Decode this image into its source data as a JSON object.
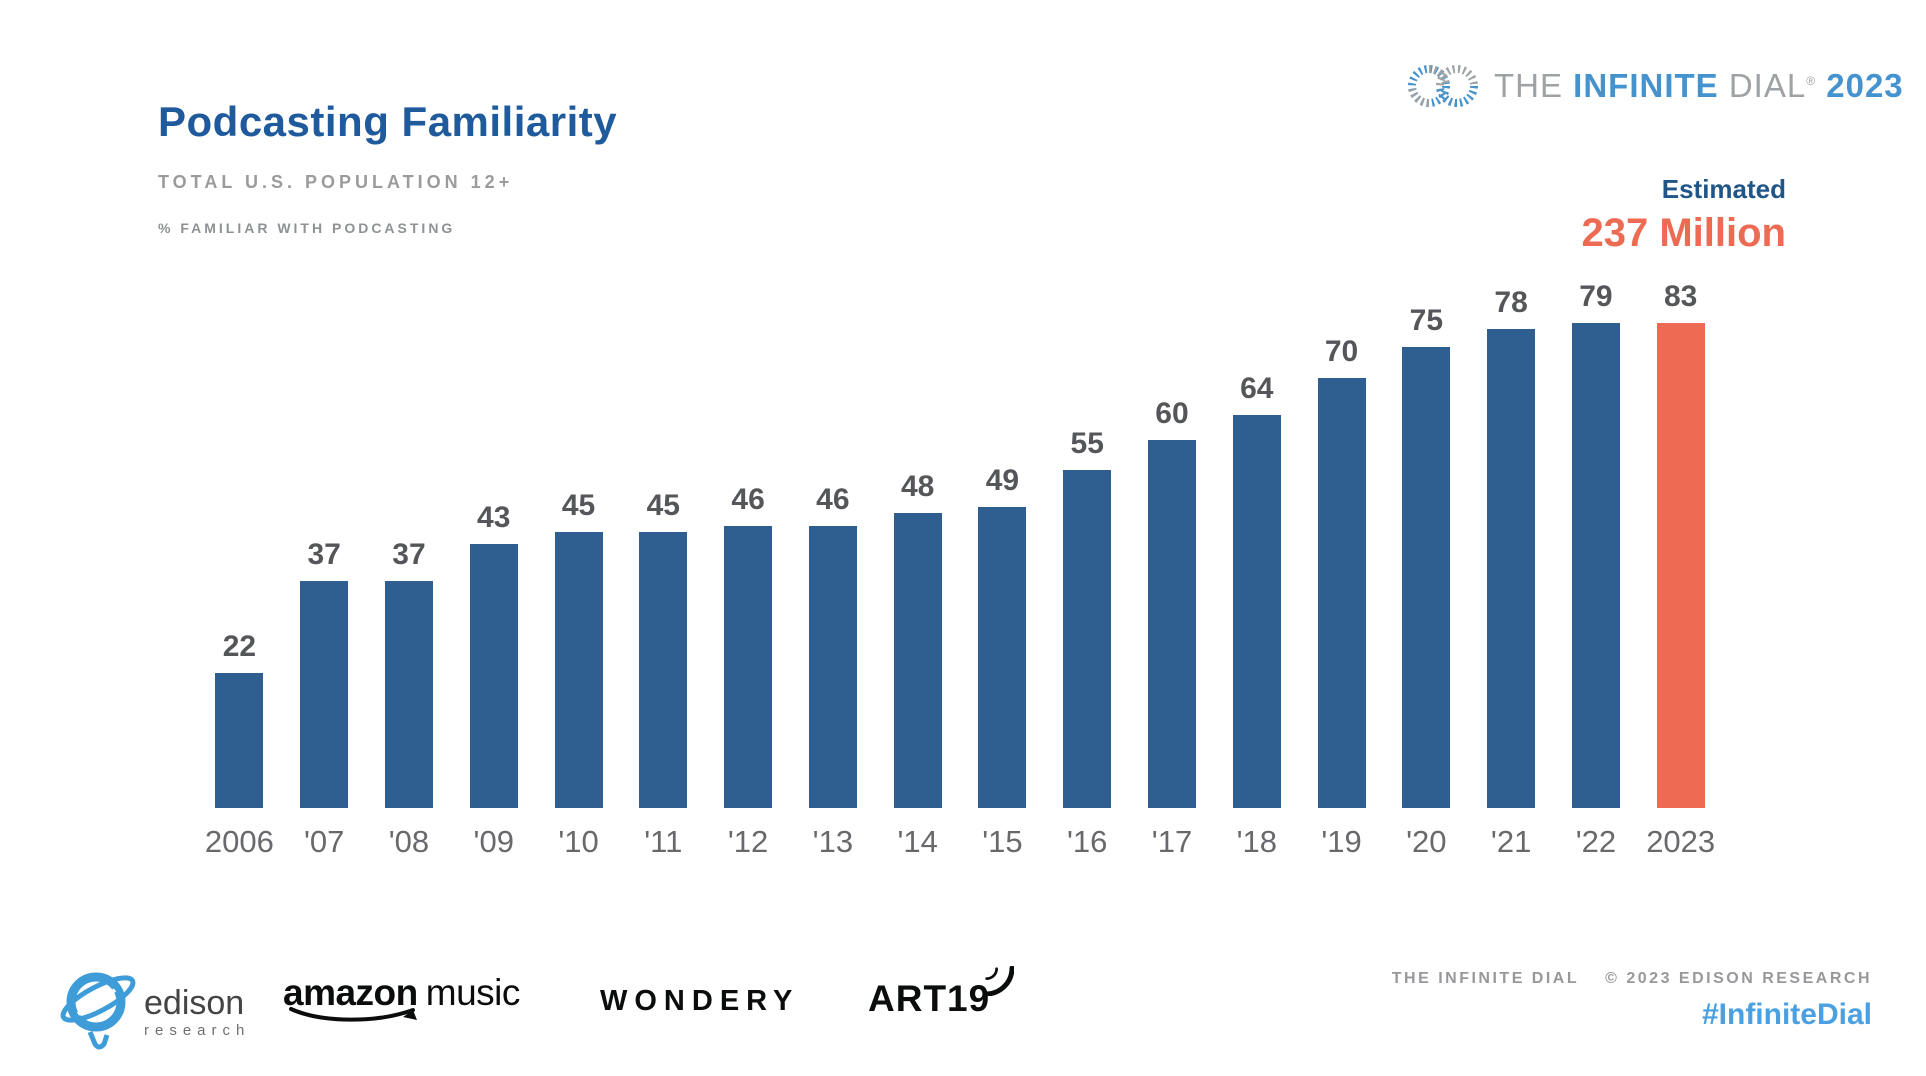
{
  "page": {
    "title": "Podcasting Familiarity",
    "subtitle": "TOTAL U.S. POPULATION 12+",
    "note": "% FAMILIAR WITH PODCASTING"
  },
  "brand": {
    "the": "THE",
    "infinite": "INFINITE",
    "dial": "DIAL",
    "registered": "®",
    "year": "2023"
  },
  "estimate": {
    "label": "Estimated",
    "value": "237 Million"
  },
  "chart_data": {
    "type": "bar",
    "title": "Podcasting Familiarity",
    "subtitle": "Total U.S. Population 12+",
    "ylabel": "% familiar with podcasting",
    "categories": [
      "2006",
      "'07",
      "'08",
      "'09",
      "'10",
      "'11",
      "'12",
      "'13",
      "'14",
      "'15",
      "'16",
      "'17",
      "'18",
      "'19",
      "'20",
      "'21",
      "'22",
      "2023"
    ],
    "values": [
      22,
      37,
      37,
      43,
      45,
      45,
      46,
      46,
      48,
      49,
      55,
      60,
      64,
      70,
      75,
      78,
      79,
      83
    ],
    "ylim": [
      0,
      100
    ],
    "grid": false,
    "value_labels": true,
    "legend": false,
    "bar_color": "#2e5f90",
    "highlight_color": "#ec6b52",
    "highlight_index": 17,
    "highlight_annotation": {
      "label": "Estimated",
      "value": "237 Million"
    }
  },
  "footer": {
    "edison": {
      "name": "edison",
      "sub": "research"
    },
    "amazon": {
      "word1": "amazon",
      "word2": "music"
    },
    "wondery": "WONDERY",
    "art19": "ART19",
    "copyright_left": "THE INFINITE DIAL",
    "copyright_right": "© 2023 EDISON RESEARCH",
    "hashtag": "#InfiniteDial"
  },
  "colors": {
    "title_blue": "#1e5a9c",
    "bar_blue": "#2e5f90",
    "highlight_orange": "#ec6b52",
    "brand_blue": "#4493ce",
    "brand_gray": "#9ea2a4",
    "hashtag_blue": "#4aa0e0",
    "value_label_gray": "#55565a",
    "axis_label_gray": "#68696c"
  }
}
